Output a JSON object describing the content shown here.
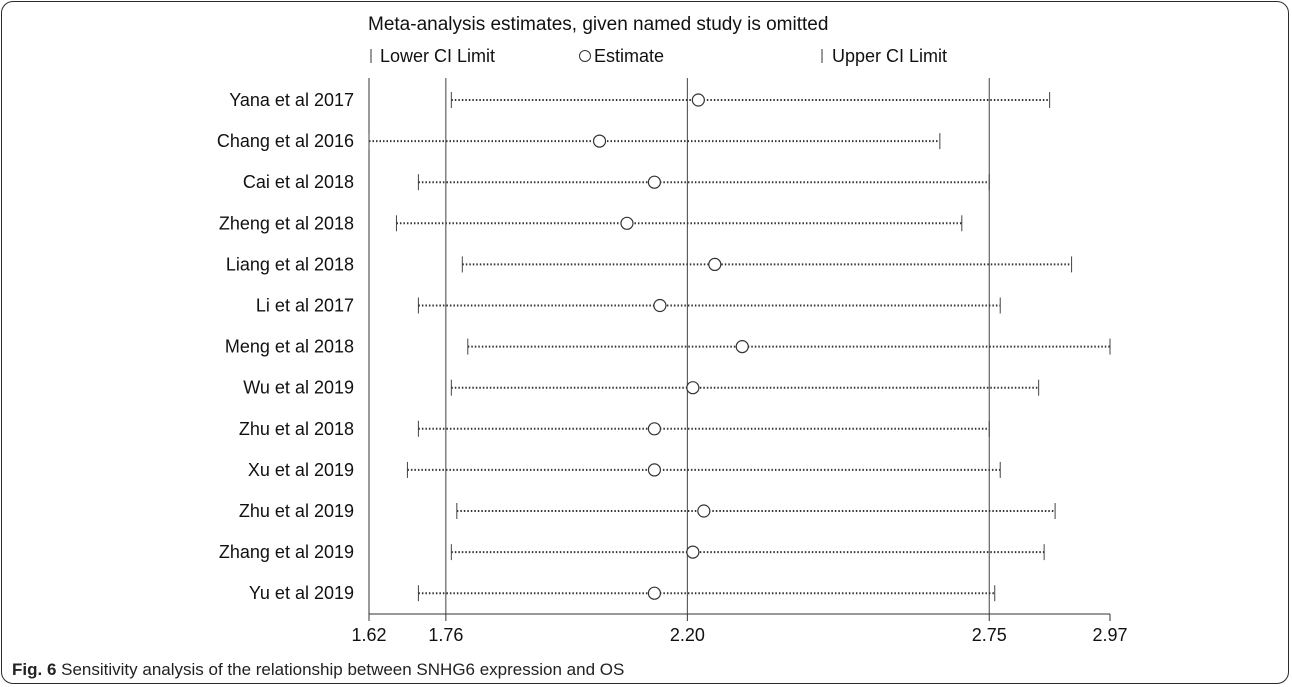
{
  "chart_data": {
    "type": "forest",
    "title": "Meta-analysis estimates, given named study is omitted",
    "legend": {
      "lower": "Lower CI Limit",
      "estimate": "Estimate",
      "upper": "Upper CI Limit"
    },
    "xlim": [
      1.62,
      2.97
    ],
    "xticks": [
      "1.62",
      "1.76",
      "2.20",
      "2.75",
      "2.97"
    ],
    "reference_lines": [
      1.76,
      2.2,
      2.75
    ],
    "studies": [
      {
        "name": "Yana et al 2017",
        "lower": 1.77,
        "estimate": 2.22,
        "upper": 2.86
      },
      {
        "name": "Chang et al 2016",
        "lower": 1.62,
        "estimate": 2.04,
        "upper": 2.66
      },
      {
        "name": "Cai et al 2018",
        "lower": 1.71,
        "estimate": 2.14,
        "upper": 2.75
      },
      {
        "name": "Zheng et al 2018",
        "lower": 1.67,
        "estimate": 2.09,
        "upper": 2.7
      },
      {
        "name": "Liang et al 2018",
        "lower": 1.79,
        "estimate": 2.25,
        "upper": 2.9
      },
      {
        "name": "Li et al 2017",
        "lower": 1.71,
        "estimate": 2.15,
        "upper": 2.77
      },
      {
        "name": "Meng et al 2018",
        "lower": 1.8,
        "estimate": 2.3,
        "upper": 2.97
      },
      {
        "name": "Wu et al 2019",
        "lower": 1.77,
        "estimate": 2.21,
        "upper": 2.84
      },
      {
        "name": "Zhu et al 2018",
        "lower": 1.71,
        "estimate": 2.14,
        "upper": 2.75
      },
      {
        "name": "Xu et al 2019",
        "lower": 1.69,
        "estimate": 2.14,
        "upper": 2.77
      },
      {
        "name": "Zhu et al 2019",
        "lower": 1.78,
        "estimate": 2.23,
        "upper": 2.87
      },
      {
        "name": "Zhang et al 2019",
        "lower": 1.77,
        "estimate": 2.21,
        "upper": 2.85
      },
      {
        "name": "Yu et al 2019",
        "lower": 1.71,
        "estimate": 2.14,
        "upper": 2.76
      }
    ]
  },
  "caption": {
    "label": "Fig. 6",
    "text": " Sensitivity analysis of the relationship between SNHG6 expression and OS"
  }
}
